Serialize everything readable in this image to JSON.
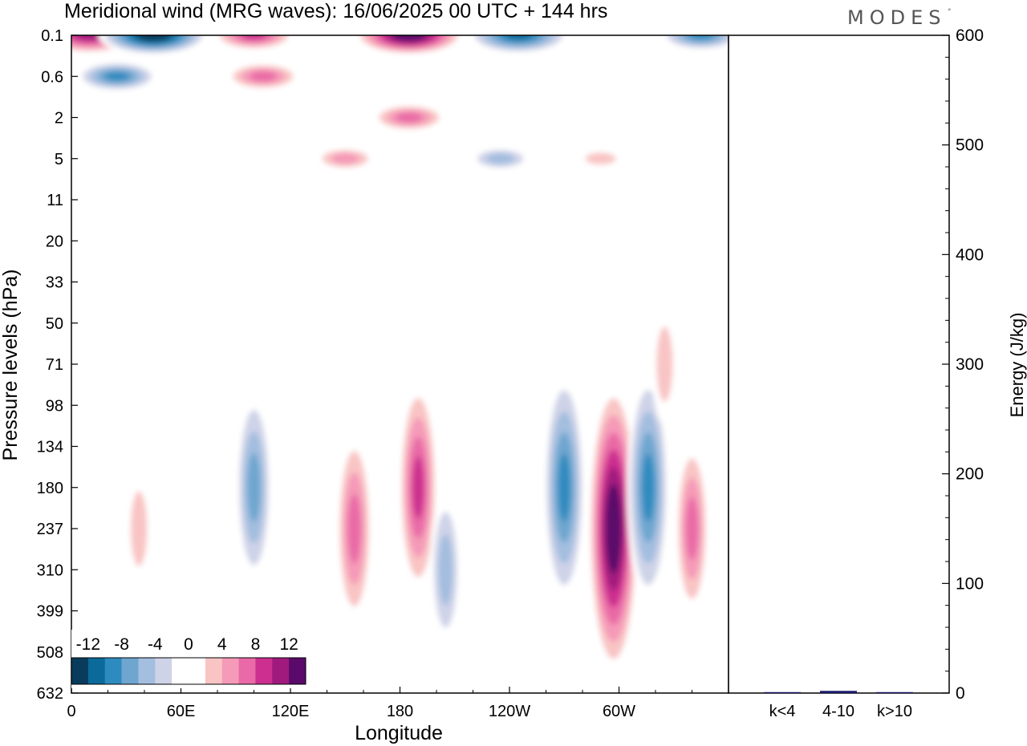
{
  "title": "Meridional wind (MRG waves):  16/06/2025  00 UTC  + 144 hrs",
  "brand": "MODES",
  "brand_mark": "°",
  "chart_data": [
    {
      "type": "heatmap",
      "title": "Meridional wind (MRG waves):  16/06/2025  00 UTC  + 144 hrs",
      "xlabel": "Longitude",
      "ylabel": "Pressure levels (hPa)",
      "x_ticks": [
        "0",
        "60E",
        "120E",
        "180",
        "120W",
        "60W"
      ],
      "y_ticks": [
        "0.1",
        "0.6",
        "2",
        "5",
        "11",
        "20",
        "33",
        "50",
        "71",
        "98",
        "134",
        "180",
        "237",
        "310",
        "399",
        "508",
        "632"
      ],
      "xlim": [
        0,
        360
      ],
      "colorbar": {
        "labels": [
          "-12",
          "-8",
          "-4",
          "0",
          "4",
          "8",
          "12"
        ],
        "levels": [
          -14,
          -12,
          -10,
          -8,
          -6,
          -4,
          -2,
          2,
          4,
          6,
          8,
          10,
          12,
          14
        ],
        "colors": [
          "#083b5c",
          "#0b6a9a",
          "#2e8bc0",
          "#6ea6cf",
          "#a3bedf",
          "#cfd3e8",
          "#ffffff",
          "#ffffff",
          "#f9c4c4",
          "#f59ab8",
          "#e96aa6",
          "#cc2f8f",
          "#a01a7d",
          "#5a0a6a"
        ]
      },
      "features": [
        {
          "lon": 10,
          "level": "0.1",
          "value": 13
        },
        {
          "lon": 45,
          "level": "0.1",
          "value": -14
        },
        {
          "lon": 25,
          "level": "0.6",
          "value": -10
        },
        {
          "lon": 100,
          "level": "0.1",
          "value": 10
        },
        {
          "lon": 105,
          "level": "0.6",
          "value": 9
        },
        {
          "lon": 185,
          "level": "0.1",
          "value": 14
        },
        {
          "lon": 245,
          "level": "0.1",
          "value": -13
        },
        {
          "lon": 345,
          "level": "0.1",
          "value": -10
        },
        {
          "lon": 185,
          "level": "2",
          "value": 9
        },
        {
          "lon": 150,
          "level": "5",
          "value": 7
        },
        {
          "lon": 235,
          "level": "5",
          "value": -7
        },
        {
          "lon": 290,
          "level": "5",
          "value": 5
        },
        {
          "lon": 100,
          "level": "180",
          "value": -9
        },
        {
          "lon": 155,
          "level": "237",
          "value": 9
        },
        {
          "lon": 190,
          "level": "180",
          "value": 10
        },
        {
          "lon": 205,
          "level": "310",
          "value": -7
        },
        {
          "lon": 270,
          "level": "180",
          "value": -11
        },
        {
          "lon": 297,
          "level": "237",
          "value": 14
        },
        {
          "lon": 316,
          "level": "180",
          "value": -11
        },
        {
          "lon": 340,
          "level": "237",
          "value": 8
        },
        {
          "lon": 37,
          "level": "237",
          "value": 5
        },
        {
          "lon": 325,
          "level": "71",
          "value": 5
        }
      ]
    },
    {
      "type": "bar",
      "categories": [
        "k<4",
        "4-10",
        "k>10"
      ],
      "values": [
        0.5,
        2,
        0.4
      ],
      "ylabel": "Energy (J/kg)",
      "ylim": [
        0,
        600
      ],
      "y_ticks": [
        "0",
        "100",
        "200",
        "300",
        "400",
        "500",
        "600"
      ],
      "bar_color": "#1a1a6e"
    }
  ]
}
